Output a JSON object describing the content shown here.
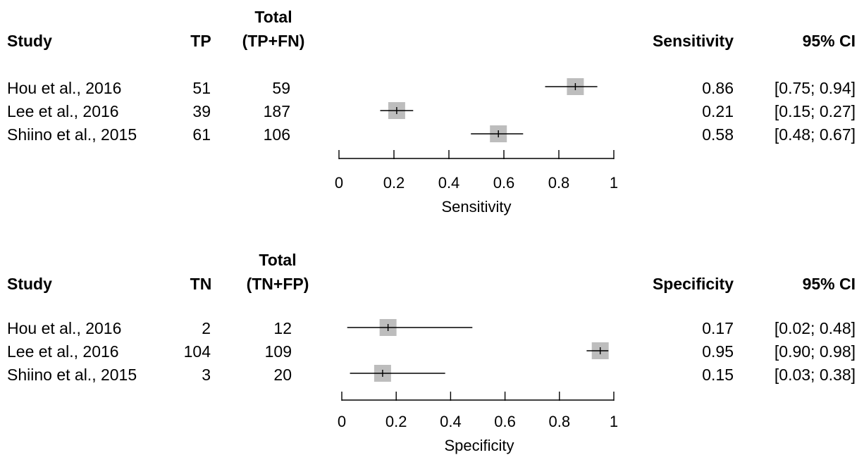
{
  "chart_data": [
    {
      "type": "forest",
      "headers": {
        "study": "Study",
        "count": "TP",
        "total_line1": "Total",
        "total_line2": "(TP+FN)",
        "estimate": "Sensitivity",
        "ci": "95% CI"
      },
      "rows": [
        {
          "study": "Hou et al., 2016",
          "count": "51",
          "total": "59",
          "estimate": 0.86,
          "ci_low": 0.75,
          "ci_high": 0.94,
          "estimate_text": "0.86",
          "ci_text": "[0.75; 0.94]"
        },
        {
          "study": "Lee et al., 2016",
          "count": "39",
          "total": "187",
          "estimate": 0.21,
          "ci_low": 0.15,
          "ci_high": 0.27,
          "estimate_text": "0.21",
          "ci_text": "[0.15; 0.27]"
        },
        {
          "study": "Shiino et al., 2015",
          "count": "61",
          "total": "106",
          "estimate": 0.58,
          "ci_low": 0.48,
          "ci_high": 0.67,
          "estimate_text": "0.58",
          "ci_text": "[0.48; 0.67]"
        }
      ],
      "xlabel": "Sensitivity",
      "xlim": [
        0,
        1
      ],
      "ticks": [
        0,
        0.2,
        0.4,
        0.6,
        0.8,
        1
      ],
      "tick_labels": [
        "0",
        "0.2",
        "0.4",
        "0.6",
        "0.8",
        "1"
      ]
    },
    {
      "type": "forest",
      "headers": {
        "study": "Study",
        "count": "TN",
        "total_line1": "Total",
        "total_line2": "(TN+FP)",
        "estimate": "Specificity",
        "ci": "95% CI"
      },
      "rows": [
        {
          "study": "Hou et al., 2016",
          "count": "2",
          "total": "12",
          "estimate": 0.17,
          "ci_low": 0.02,
          "ci_high": 0.48,
          "estimate_text": "0.17",
          "ci_text": "[0.02; 0.48]"
        },
        {
          "study": "Lee et al., 2016",
          "count": "104",
          "total": "109",
          "estimate": 0.95,
          "ci_low": 0.9,
          "ci_high": 0.98,
          "estimate_text": "0.95",
          "ci_text": "[0.90; 0.98]"
        },
        {
          "study": "Shiino et al., 2015",
          "count": "3",
          "total": "20",
          "estimate": 0.15,
          "ci_low": 0.03,
          "ci_high": 0.38,
          "estimate_text": "0.15",
          "ci_text": "[0.03; 0.38]"
        }
      ],
      "xlabel": "Specificity",
      "xlim": [
        0,
        1
      ],
      "ticks": [
        0,
        0.2,
        0.4,
        0.6,
        0.8,
        1
      ],
      "tick_labels": [
        "0",
        "0.2",
        "0.4",
        "0.6",
        "0.8",
        "1"
      ]
    }
  ]
}
